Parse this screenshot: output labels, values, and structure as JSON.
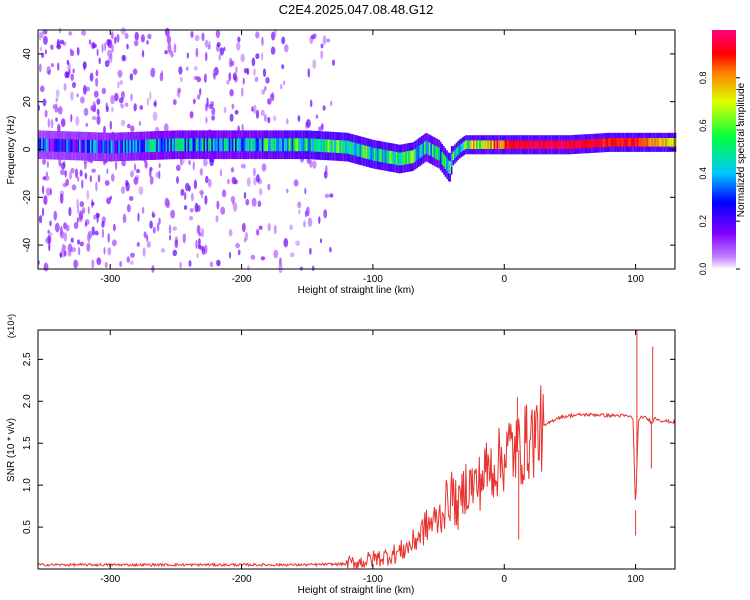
{
  "title": "C2E4.2025.047.08.48.G12",
  "chart_data": [
    {
      "type": "heatmap",
      "xlabel": "Height of straight line (km)",
      "ylabel": "Frequency (Hz)",
      "xlim": [
        -355,
        130
      ],
      "ylim": [
        -50,
        50
      ],
      "xticks": [
        -300,
        -200,
        -100,
        0,
        100
      ],
      "xtick_labels": [
        "-300",
        "-200",
        "-100",
        "0",
        "100"
      ],
      "yticks": [
        -40,
        -20,
        0,
        20,
        40
      ],
      "ytick_labels": [
        "-40",
        "-20",
        "0",
        "20",
        "40"
      ],
      "colorbar": {
        "label": "Normalized spectral amplitude",
        "range": [
          0,
          1
        ],
        "ticks": [
          0.0,
          0.2,
          0.4,
          0.6,
          0.8
        ],
        "tick_labels": [
          "0.0",
          "0.2",
          "0.4",
          "0.6",
          "0.8"
        ],
        "colormap": [
          "#ffffff",
          "#a000ff",
          "#0000ff",
          "#00ffff",
          "#00ff00",
          "#ffff00",
          "#ff0000",
          "#ff0080"
        ]
      },
      "ridge": {
        "x": [
          -355,
          -300,
          -250,
          -200,
          -150,
          -120,
          -100,
          -80,
          -70,
          -60,
          -50,
          -42,
          -40,
          -35,
          -30,
          -20,
          -10,
          0,
          20,
          50,
          80,
          100,
          110,
          130
        ],
        "center_freq": [
          2,
          1,
          2,
          2,
          2,
          1,
          -2,
          -4,
          -3,
          1,
          -2,
          -8,
          -3,
          0,
          2,
          2,
          2,
          2,
          2,
          2,
          3,
          3,
          3,
          3
        ],
        "amplitude": [
          0.25,
          0.3,
          0.4,
          0.4,
          0.5,
          0.55,
          0.5,
          0.5,
          0.55,
          0.45,
          0.45,
          0.5,
          0.5,
          0.5,
          0.6,
          0.7,
          0.8,
          0.9,
          0.95,
          0.95,
          0.9,
          0.9,
          0.8,
          0.7
        ]
      },
      "noise_region": {
        "x": [
          -355,
          -130
        ],
        "amplitude": 0.15
      }
    },
    {
      "type": "line",
      "xlabel": "Height of straight line (km)",
      "ylabel": "SNR (10 * v/v)",
      "yunit_multiplier": "(x10⁴)",
      "xlim": [
        -355,
        130
      ],
      "ylim": [
        0,
        2.85
      ],
      "xticks": [
        -300,
        -200,
        -100,
        0,
        100
      ],
      "xtick_labels": [
        "-300",
        "-200",
        "-100",
        "0",
        "100"
      ],
      "yticks": [
        0.5,
        1.0,
        1.5,
        2.0,
        2.5
      ],
      "ytick_labels": [
        "0.5",
        "1.0",
        "1.5",
        "2.0",
        "2.5"
      ],
      "color": "#e8332e",
      "series": [
        {
          "x": [
            -355,
            -300,
            -250,
            -200,
            -150,
            -120,
            -110,
            -100,
            -90,
            -80,
            -70,
            -60,
            -50,
            -45,
            -40,
            -35,
            -30,
            -25,
            -20,
            -15,
            -10,
            -5,
            0,
            5,
            10,
            20,
            30,
            40,
            50,
            60,
            70,
            80,
            90,
            95,
            98,
            100,
            102,
            105,
            110,
            112,
            115,
            120,
            130
          ],
          "y": [
            0.05,
            0.05,
            0.05,
            0.05,
            0.05,
            0.06,
            0.08,
            0.12,
            0.15,
            0.2,
            0.3,
            0.5,
            0.6,
            0.75,
            0.9,
            0.7,
            1.0,
            1.0,
            1.0,
            1.15,
            1.2,
            1.25,
            1.35,
            1.45,
            1.4,
            1.55,
            1.7,
            1.8,
            1.83,
            1.84,
            1.84,
            1.83,
            1.83,
            1.82,
            1.8,
            0.7,
            1.75,
            1.82,
            1.78,
            1.75,
            1.8,
            1.77,
            1.75
          ]
        }
      ],
      "spikes": [
        {
          "x": 10,
          "y": 2.05
        },
        {
          "x": 11,
          "y": 0.35
        },
        {
          "x": 100,
          "y": 0.4
        },
        {
          "x": 101,
          "y": 2.85
        },
        {
          "x": 113,
          "y": 2.65
        },
        {
          "x": 112,
          "y": 1.2
        }
      ]
    }
  ]
}
